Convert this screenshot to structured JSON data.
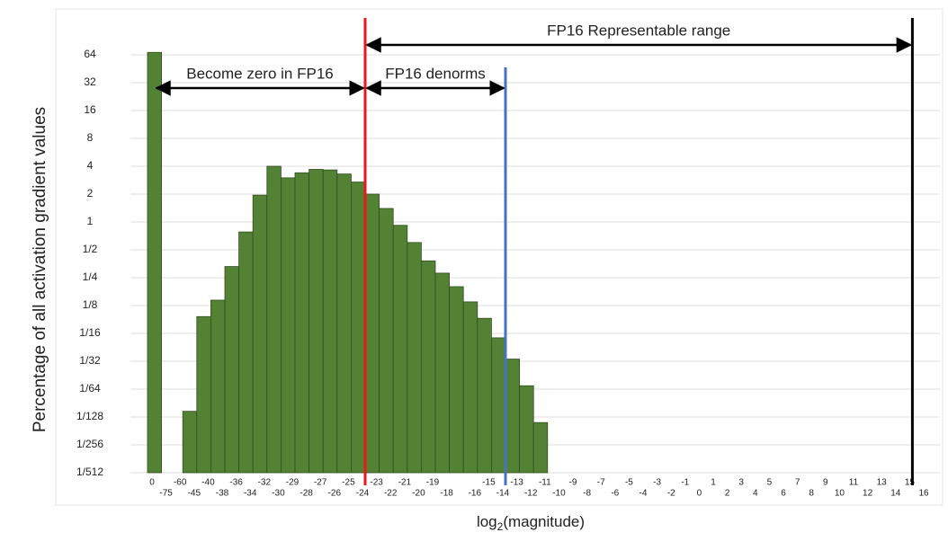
{
  "chart_data": {
    "type": "bar",
    "y_label": "Percentage of all activation gradient values",
    "x_label": {
      "base": "log",
      "sub": "2",
      "rest": "(magnitude)"
    },
    "categories": [
      0,
      -75,
      -60,
      -45,
      -40,
      -38,
      -36,
      -34,
      -32,
      -30,
      -29,
      -28,
      -27,
      -26,
      -25,
      -24,
      -23,
      -22,
      -21,
      -20,
      -19,
      -18,
      null,
      -16,
      -15,
      -14,
      -13,
      -12,
      -11,
      -10,
      -9,
      -8,
      -7,
      -6,
      -5,
      -4,
      -3,
      -2,
      -1,
      0,
      1,
      2,
      3,
      4,
      5,
      6,
      7,
      8,
      9,
      10,
      11,
      12,
      13,
      14,
      15,
      16
    ],
    "values": [
      68,
      null,
      0.009,
      0.095,
      0.143,
      0.33,
      0.78,
      1.95,
      4,
      3.0,
      3.4,
      3.7,
      3.65,
      3.3,
      2.7,
      2.0,
      1.4,
      0.92,
      0.6,
      0.38,
      0.28,
      0.2,
      0.137,
      0.091,
      0.056,
      0.033,
      0.017,
      0.0068,
      null,
      null,
      null,
      null,
      null,
      null,
      null,
      null,
      null,
      null,
      null,
      null,
      null,
      null,
      null,
      null,
      null,
      null,
      null,
      null,
      null,
      null,
      null,
      null,
      null,
      null,
      null,
      null
    ],
    "color": "#548235",
    "log_base": 2,
    "ylim": [
      0.001953125,
      128
    ],
    "yticks": [
      {
        "value": 0.001953125,
        "label": "1/512"
      },
      {
        "value": 0.00390625,
        "label": "1/256"
      },
      {
        "value": 0.0078125,
        "label": "1/128"
      },
      {
        "value": 0.015625,
        "label": "1/64"
      },
      {
        "value": 0.03125,
        "label": "1/32"
      },
      {
        "value": 0.0625,
        "label": "1/16"
      },
      {
        "value": 0.125,
        "label": "1/8"
      },
      {
        "value": 0.25,
        "label": "1/4"
      },
      {
        "value": 0.5,
        "label": "1/2"
      },
      1,
      2,
      4,
      8,
      16,
      32,
      64
    ],
    "grid": true,
    "vlines": [
      {
        "at": -24,
        "color": "#e8191c"
      },
      {
        "at": -14,
        "color": "#4472c4"
      },
      {
        "at": 15,
        "color": "#000000"
      }
    ],
    "annotations": [
      {
        "text": "Become zero in FP16",
        "from": 0,
        "to": -24,
        "level": "low"
      },
      {
        "text": "FP16 denorms",
        "from": -24,
        "to": -14,
        "level": "low"
      },
      {
        "text": "FP16 Representable range",
        "from": -24,
        "to": 15,
        "level": "high"
      }
    ]
  }
}
